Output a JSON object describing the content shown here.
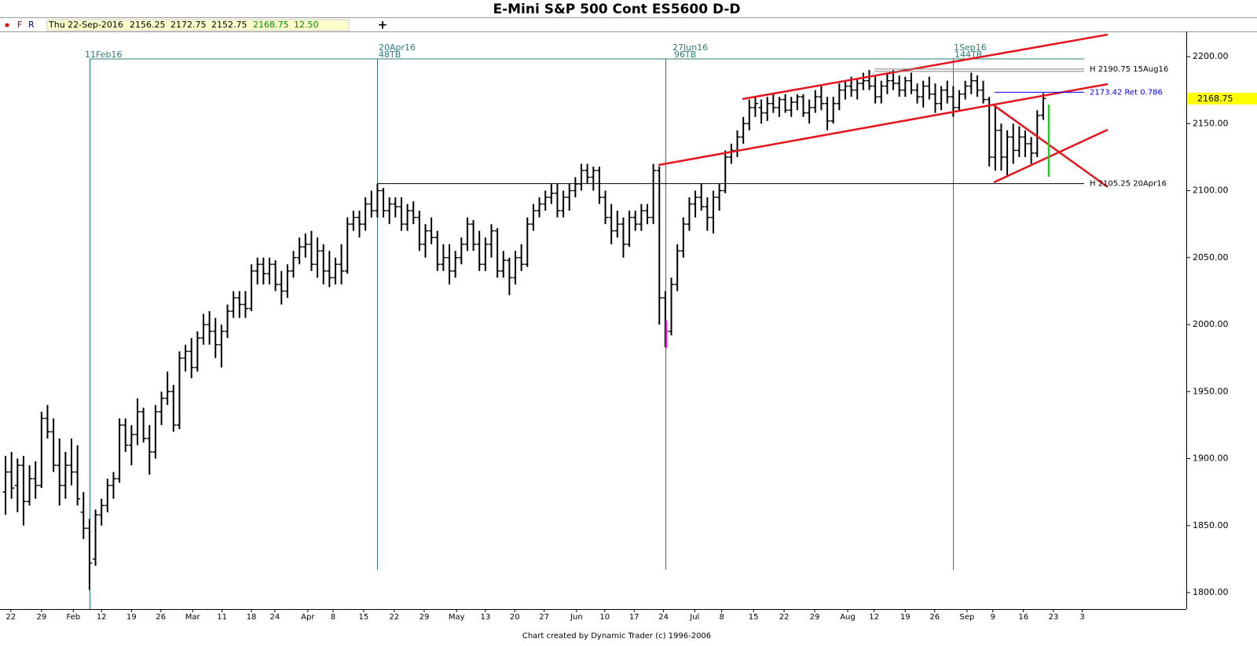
{
  "chart_data": {
    "type": "ohlc",
    "title": "E-Mini S&P 500 Cont ES5600 D-D",
    "toolbar": {
      "buttons": [
        "F",
        "R"
      ],
      "info_date": "Thu 22-Sep-2016",
      "change": "12.50"
    },
    "footer": "Chart created by Dynamic Trader  (c) 1996-2006",
    "color": "#000000",
    "ylim": [
      1787.7,
      2218.8
    ],
    "yticks": [
      {
        "value": 1800,
        "label": "1800.00"
      },
      {
        "value": 1850,
        "label": "1850.00"
      },
      {
        "value": 1900,
        "label": "1900.00"
      },
      {
        "value": 1950,
        "label": "1950.00"
      },
      {
        "value": 2000,
        "label": "2000.00"
      },
      {
        "value": 2050,
        "label": "2050.00"
      },
      {
        "value": 2100,
        "label": "2100.00"
      },
      {
        "value": 2150,
        "label": "2150.00"
      },
      {
        "value": 2200,
        "label": "2200.00"
      }
    ],
    "xlim": [
      -0.92,
      196.85
    ],
    "xticks": [
      {
        "value": 0.9,
        "label": "22"
      },
      {
        "value": 6,
        "label": "29"
      },
      {
        "value": 11.3,
        "label": "Feb"
      },
      {
        "value": 16,
        "label": "12"
      },
      {
        "value": 21,
        "label": "19"
      },
      {
        "value": 25.9,
        "label": "26"
      },
      {
        "value": 31.2,
        "label": "Mar"
      },
      {
        "value": 36.1,
        "label": "11"
      },
      {
        "value": 41,
        "label": "18"
      },
      {
        "value": 44.9,
        "label": "24"
      },
      {
        "value": 50.4,
        "label": "Apr"
      },
      {
        "value": 54.6,
        "label": "8"
      },
      {
        "value": 59.7,
        "label": "15"
      },
      {
        "value": 64.8,
        "label": "22"
      },
      {
        "value": 69.8,
        "label": "29"
      },
      {
        "value": 75.2,
        "label": "May"
      },
      {
        "value": 80,
        "label": "13"
      },
      {
        "value": 84.9,
        "label": "20"
      },
      {
        "value": 89.8,
        "label": "27"
      },
      {
        "value": 95.2,
        "label": "Jun"
      },
      {
        "value": 99.9,
        "label": "10"
      },
      {
        "value": 104.8,
        "label": "17"
      },
      {
        "value": 109.7,
        "label": "24"
      },
      {
        "value": 114.9,
        "label": "Jul"
      },
      {
        "value": 119.4,
        "label": "8"
      },
      {
        "value": 124.7,
        "label": "15"
      },
      {
        "value": 129.8,
        "label": "22"
      },
      {
        "value": 134.9,
        "label": "29"
      },
      {
        "value": 140.4,
        "label": "Aug"
      },
      {
        "value": 144.8,
        "label": "12"
      },
      {
        "value": 150,
        "label": "19"
      },
      {
        "value": 154.9,
        "label": "26"
      },
      {
        "value": 160.3,
        "label": "Sep"
      },
      {
        "value": 164.6,
        "label": "9"
      },
      {
        "value": 169.7,
        "label": "16"
      },
      {
        "value": 174.7,
        "label": "23"
      },
      {
        "value": 179.5,
        "label": "3"
      }
    ],
    "levels": [
      {
        "label": "H 2190.75 15Aug16",
        "value": 2190.75,
        "color": "#808080"
      },
      {
        "label": "2173.42 Ret 0.786",
        "value": 2173.42,
        "color": "#0000ff"
      },
      {
        "label": "H 2105.25 20Apr16",
        "value": 2105.25,
        "color": "#000000"
      }
    ],
    "time_markers": [
      {
        "date": "11Feb16"
      },
      {
        "date": "20Apr16",
        "count": "48TB"
      },
      {
        "date": "27Jun16",
        "count": "96TB"
      },
      {
        "date": "1Sep16",
        "count": "144TB"
      }
    ],
    "ohlc": [
      [
        1875,
        1902,
        1858,
        1890
      ],
      [
        1890,
        1905,
        1870,
        1878
      ],
      [
        1880,
        1900,
        1860,
        1895
      ],
      [
        1895,
        1902,
        1850,
        1868
      ],
      [
        1868,
        1895,
        1865,
        1885
      ],
      [
        1885,
        1898,
        1870,
        1880
      ],
      [
        1880,
        1935,
        1878,
        1930
      ],
      [
        1930,
        1940,
        1915,
        1920
      ],
      [
        1920,
        1930,
        1890,
        1895
      ],
      [
        1895,
        1915,
        1865,
        1880
      ],
      [
        1880,
        1905,
        1870,
        1895
      ],
      [
        1895,
        1915,
        1880,
        1890
      ],
      [
        1890,
        1910,
        1865,
        1870
      ],
      [
        1860,
        1875,
        1840,
        1848
      ],
      [
        1848,
        1855,
        1802,
        1822
      ],
      [
        1825,
        1862,
        1820,
        1858
      ],
      [
        1858,
        1870,
        1850,
        1865
      ],
      [
        1865,
        1885,
        1860,
        1880
      ],
      [
        1880,
        1890,
        1870,
        1885
      ],
      [
        1885,
        1930,
        1882,
        1925
      ],
      [
        1925,
        1930,
        1905,
        1910
      ],
      [
        1910,
        1925,
        1895,
        1918
      ],
      [
        1918,
        1945,
        1910,
        1935
      ],
      [
        1935,
        1938,
        1912,
        1915
      ],
      [
        1915,
        1925,
        1888,
        1905
      ],
      [
        1905,
        1940,
        1900,
        1935
      ],
      [
        1935,
        1950,
        1925,
        1945
      ],
      [
        1945,
        1965,
        1940,
        1950
      ],
      [
        1950,
        1955,
        1920,
        1925
      ],
      [
        1925,
        1980,
        1922,
        1975
      ],
      [
        1975,
        1985,
        1965,
        1980
      ],
      [
        1980,
        1990,
        1960,
        1968
      ],
      [
        1968,
        1995,
        1965,
        1990
      ],
      [
        1990,
        2008,
        1985,
        2000
      ],
      [
        2000,
        2010,
        1985,
        1995
      ],
      [
        1995,
        2005,
        1975,
        1985
      ],
      [
        1985,
        2000,
        1968,
        1995
      ],
      [
        1995,
        2015,
        1990,
        2010
      ],
      [
        2010,
        2025,
        2005,
        2020
      ],
      [
        2020,
        2025,
        2005,
        2015
      ],
      [
        2015,
        2025,
        2005,
        2012
      ],
      [
        2012,
        2045,
        2010,
        2040
      ],
      [
        2040,
        2050,
        2030,
        2045
      ],
      [
        2045,
        2050,
        2030,
        2038
      ],
      [
        2038,
        2050,
        2030,
        2045
      ],
      [
        2045,
        2048,
        2025,
        2030
      ],
      [
        2030,
        2040,
        2015,
        2025
      ],
      [
        2025,
        2045,
        2020,
        2040
      ],
      [
        2040,
        2055,
        2035,
        2050
      ],
      [
        2050,
        2065,
        2045,
        2058
      ],
      [
        2058,
        2068,
        2050,
        2060
      ],
      [
        2060,
        2070,
        2040,
        2045
      ],
      [
        2045,
        2065,
        2035,
        2055
      ],
      [
        2055,
        2060,
        2030,
        2040
      ],
      [
        2040,
        2055,
        2028,
        2035
      ],
      [
        2035,
        2050,
        2030,
        2045
      ],
      [
        2045,
        2060,
        2030,
        2040
      ],
      [
        2040,
        2080,
        2038,
        2075
      ],
      [
        2075,
        2085,
        2070,
        2080
      ],
      [
        2080,
        2085,
        2065,
        2075
      ],
      [
        2075,
        2095,
        2070,
        2090
      ],
      [
        2090,
        2100,
        2080,
        2085
      ],
      [
        2085,
        2105,
        2080,
        2100
      ],
      [
        2100,
        2102,
        2080,
        2085
      ],
      [
        2085,
        2095,
        2075,
        2090
      ],
      [
        2090,
        2095,
        2080,
        2088
      ],
      [
        2088,
        2095,
        2070,
        2075
      ],
      [
        2075,
        2090,
        2070,
        2085
      ],
      [
        2085,
        2092,
        2075,
        2080
      ],
      [
        2080,
        2085,
        2055,
        2060
      ],
      [
        2060,
        2075,
        2050,
        2070
      ],
      [
        2070,
        2080,
        2060,
        2065
      ],
      [
        2065,
        2070,
        2040,
        2045
      ],
      [
        2045,
        2060,
        2040,
        2050
      ],
      [
        2050,
        2060,
        2030,
        2040
      ],
      [
        2040,
        2055,
        2035,
        2050
      ],
      [
        2050,
        2065,
        2045,
        2060
      ],
      [
        2060,
        2080,
        2055,
        2075
      ],
      [
        2075,
        2078,
        2055,
        2060
      ],
      [
        2060,
        2070,
        2040,
        2045
      ],
      [
        2045,
        2065,
        2040,
        2060
      ],
      [
        2060,
        2075,
        2050,
        2070
      ],
      [
        2070,
        2072,
        2035,
        2040
      ],
      [
        2040,
        2055,
        2035,
        2048
      ],
      [
        2048,
        2050,
        2022,
        2035
      ],
      [
        2035,
        2055,
        2030,
        2050
      ],
      [
        2050,
        2060,
        2040,
        2045
      ],
      [
        2045,
        2080,
        2043,
        2075
      ],
      [
        2075,
        2090,
        2070,
        2085
      ],
      [
        2085,
        2095,
        2080,
        2090
      ],
      [
        2090,
        2100,
        2085,
        2095
      ],
      [
        2095,
        2105,
        2090,
        2098
      ],
      [
        2098,
        2105,
        2080,
        2085
      ],
      [
        2085,
        2100,
        2080,
        2095
      ],
      [
        2095,
        2105,
        2085,
        2100
      ],
      [
        2100,
        2110,
        2095,
        2105
      ],
      [
        2105,
        2120,
        2100,
        2115
      ],
      [
        2115,
        2120,
        2105,
        2110
      ],
      [
        2110,
        2118,
        2100,
        2115
      ],
      [
        2115,
        2118,
        2090,
        2095
      ],
      [
        2095,
        2100,
        2075,
        2080
      ],
      [
        2080,
        2090,
        2060,
        2070
      ],
      [
        2070,
        2085,
        2065,
        2075
      ],
      [
        2075,
        2080,
        2050,
        2060
      ],
      [
        2060,
        2085,
        2058,
        2080
      ],
      [
        2080,
        2085,
        2070,
        2075
      ],
      [
        2075,
        2090,
        2070,
        2085
      ],
      [
        2085,
        2090,
        2075,
        2080
      ],
      [
        2080,
        2120,
        2075,
        2115
      ],
      [
        2115,
        2118,
        2000,
        2020
      ],
      [
        2020,
        2025,
        1983,
        1995
      ],
      [
        1995,
        2035,
        1992,
        2030
      ],
      [
        2030,
        2060,
        2025,
        2055
      ],
      [
        2055,
        2080,
        2050,
        2075
      ],
      [
        2075,
        2095,
        2070,
        2090
      ],
      [
        2090,
        2100,
        2080,
        2095
      ],
      [
        2095,
        2105,
        2085,
        2088
      ],
      [
        2088,
        2095,
        2070,
        2080
      ],
      [
        2080,
        2100,
        2068,
        2095
      ],
      [
        2095,
        2105,
        2085,
        2100
      ],
      [
        2100,
        2130,
        2098,
        2125
      ],
      [
        2125,
        2135,
        2120,
        2130
      ],
      [
        2130,
        2145,
        2125,
        2140
      ],
      [
        2140,
        2155,
        2135,
        2150
      ],
      [
        2150,
        2168,
        2145,
        2162
      ],
      [
        2162,
        2170,
        2155,
        2165
      ],
      [
        2162,
        2168,
        2150,
        2158
      ],
      [
        2158,
        2170,
        2152,
        2165
      ],
      [
        2165,
        2172,
        2158,
        2162
      ],
      [
        2162,
        2170,
        2155,
        2168
      ],
      [
        2168,
        2172,
        2158,
        2160
      ],
      [
        2160,
        2170,
        2155,
        2166
      ],
      [
        2166,
        2172,
        2160,
        2170
      ],
      [
        2170,
        2172,
        2155,
        2158
      ],
      [
        2158,
        2168,
        2150,
        2162
      ],
      [
        2162,
        2175,
        2158,
        2170
      ],
      [
        2170,
        2178,
        2160,
        2165
      ],
      [
        2165,
        2170,
        2145,
        2152
      ],
      [
        2152,
        2170,
        2150,
        2165
      ],
      [
        2165,
        2180,
        2160,
        2175
      ],
      [
        2175,
        2182,
        2168,
        2178
      ],
      [
        2178,
        2185,
        2170,
        2175
      ],
      [
        2175,
        2183,
        2168,
        2180
      ],
      [
        2180,
        2188,
        2175,
        2182
      ],
      [
        2182,
        2190,
        2175,
        2178
      ],
      [
        2178,
        2185,
        2165,
        2170
      ],
      [
        2170,
        2182,
        2165,
        2178
      ],
      [
        2178,
        2187,
        2172,
        2182
      ],
      [
        2182,
        2190,
        2175,
        2180
      ],
      [
        2180,
        2186,
        2170,
        2175
      ],
      [
        2175,
        2185,
        2170,
        2182
      ],
      [
        2182,
        2188,
        2172,
        2175
      ],
      [
        2175,
        2180,
        2165,
        2170
      ],
      [
        2170,
        2182,
        2162,
        2178
      ],
      [
        2178,
        2185,
        2168,
        2172
      ],
      [
        2172,
        2180,
        2158,
        2165
      ],
      [
        2165,
        2178,
        2160,
        2175
      ],
      [
        2175,
        2182,
        2165,
        2170
      ],
      [
        2170,
        2178,
        2155,
        2162
      ],
      [
        2162,
        2175,
        2160,
        2172
      ],
      [
        2172,
        2182,
        2168,
        2178
      ],
      [
        2178,
        2188,
        2172,
        2182
      ],
      [
        2182,
        2186,
        2170,
        2175
      ],
      [
        2175,
        2182,
        2165,
        2168
      ],
      [
        2168,
        2170,
        2118,
        2125
      ],
      [
        2125,
        2165,
        2115,
        2145
      ],
      [
        2145,
        2150,
        2115,
        2125
      ],
      [
        2125,
        2145,
        2110,
        2140
      ],
      [
        2140,
        2150,
        2120,
        2130
      ],
      [
        2130,
        2148,
        2125,
        2140
      ],
      [
        2140,
        2145,
        2125,
        2135
      ],
      [
        2135,
        2140,
        2120,
        2128
      ],
      [
        2128,
        2160,
        2125,
        2156
      ],
      [
        2156.25,
        2172.75,
        2152.75,
        2168.75
      ]
    ]
  }
}
